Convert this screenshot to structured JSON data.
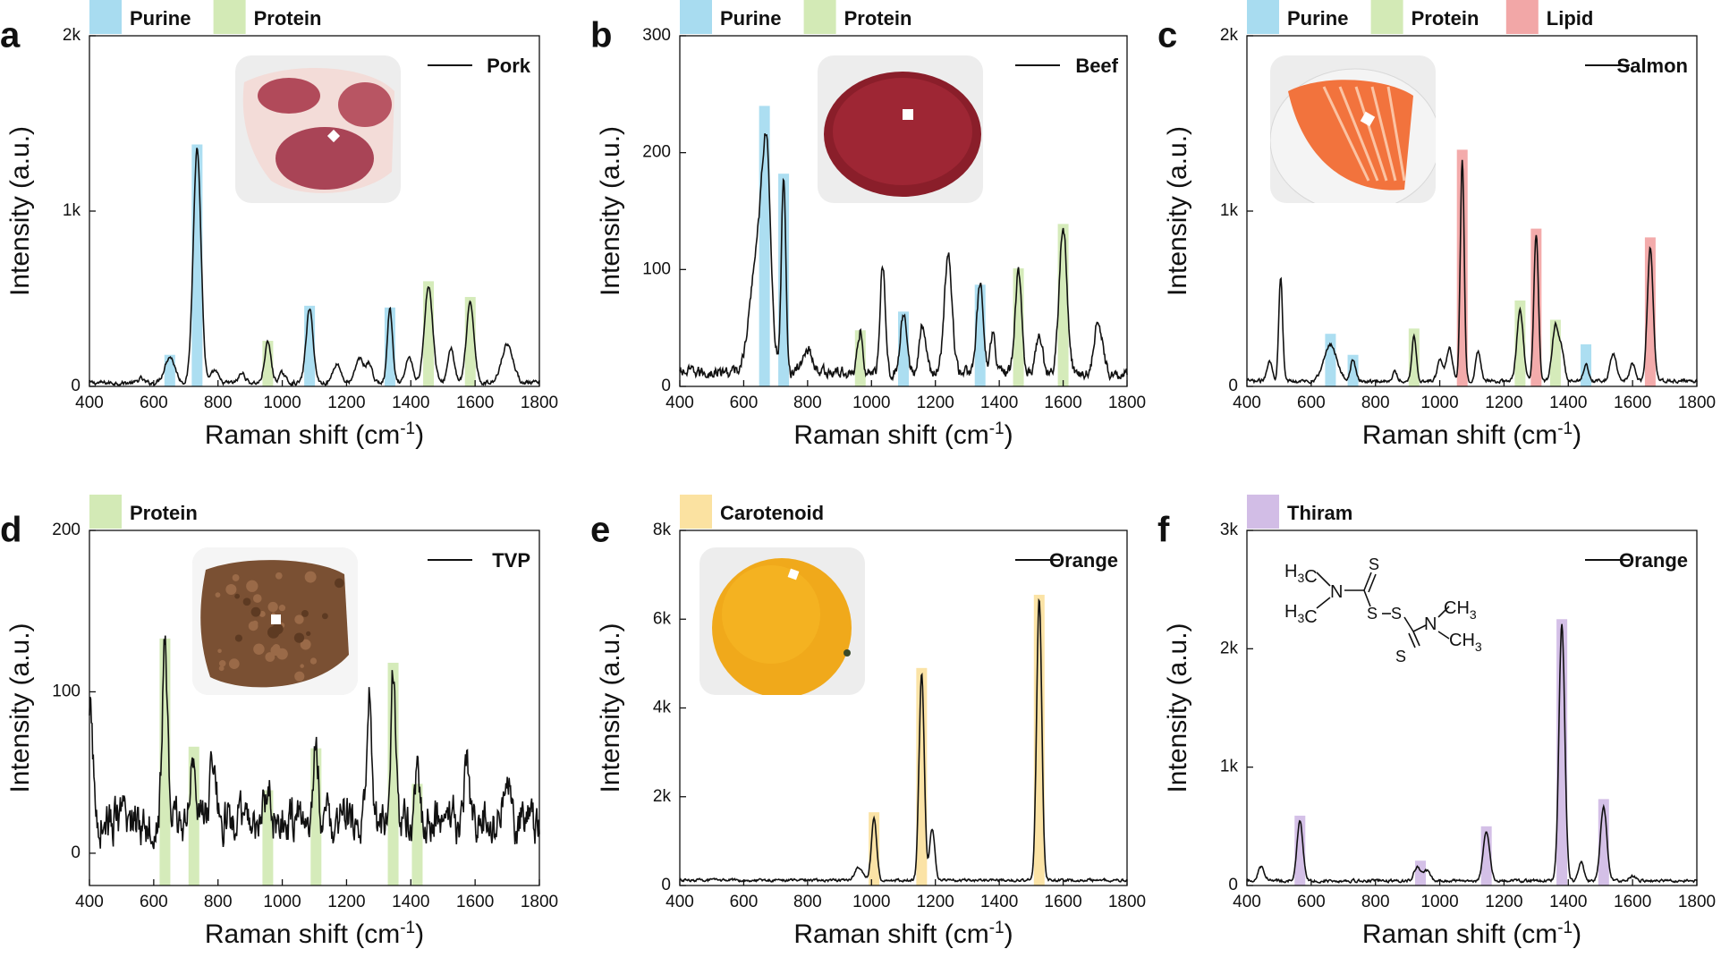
{
  "figure": {
    "panel_labels": [
      "a",
      "b",
      "c",
      "d",
      "e",
      "f"
    ],
    "xlabel": "Raman shift (cm",
    "xlabel_sup": "-1",
    "xlabel_close": ")",
    "ylabel": "Intensity (a.u.)"
  },
  "colors": {
    "Purine": "#a8dcf0",
    "Protein": "#d3eab6",
    "Lipid": "#f2a7a7",
    "Carotenoid": "#fbe2a1",
    "Thiram": "#d2bde6",
    "line": "#111111"
  },
  "chart_data": [
    {
      "panel": "a",
      "type": "line",
      "series_name": "Pork",
      "legend_bands": [
        "Purine",
        "Protein"
      ],
      "xlim": [
        400,
        1800
      ],
      "ylim": [
        0,
        2000
      ],
      "xticks": [
        400,
        600,
        800,
        1000,
        1200,
        1400,
        1600,
        1800
      ],
      "yticks": [
        0,
        1000,
        2000
      ],
      "yticklabels": [
        "0",
        "1k",
        "2k"
      ],
      "baseline": 20,
      "noise": 12,
      "peaks": [
        [
          560,
          25,
          8
        ],
        [
          650,
          150,
          16
        ],
        [
          735,
          1340,
          12
        ],
        [
          790,
          70,
          10
        ],
        [
          875,
          55,
          10
        ],
        [
          955,
          230,
          10
        ],
        [
          1000,
          55,
          10
        ],
        [
          1085,
          420,
          11
        ],
        [
          1170,
          110,
          12
        ],
        [
          1240,
          140,
          12
        ],
        [
          1270,
          110,
          10
        ],
        [
          1335,
          420,
          8
        ],
        [
          1395,
          150,
          10
        ],
        [
          1455,
          550,
          13
        ],
        [
          1525,
          200,
          10
        ],
        [
          1585,
          450,
          12
        ],
        [
          1700,
          220,
          18
        ]
      ],
      "bands": [
        {
          "x": 650,
          "h": 180,
          "k": "Purine"
        },
        {
          "x": 735,
          "h": 1380,
          "k": "Purine"
        },
        {
          "x": 955,
          "h": 260,
          "k": "Protein"
        },
        {
          "x": 1085,
          "h": 460,
          "k": "Purine"
        },
        {
          "x": 1335,
          "h": 450,
          "k": "Purine"
        },
        {
          "x": 1455,
          "h": 600,
          "k": "Protein"
        },
        {
          "x": 1585,
          "h": 510,
          "k": "Protein"
        }
      ]
    },
    {
      "panel": "b",
      "type": "line",
      "series_name": "Beef",
      "legend_bands": [
        "Purine",
        "Protein"
      ],
      "xlim": [
        400,
        1800
      ],
      "ylim": [
        0,
        300
      ],
      "xticks": [
        400,
        600,
        800,
        1000,
        1200,
        1400,
        1600,
        1800
      ],
      "yticks": [
        0,
        100,
        200,
        300
      ],
      "yticklabels": [
        "0",
        "100",
        "200",
        "300"
      ],
      "baseline": 12,
      "noise": 5,
      "peaks": [
        [
          650,
          120,
          25
        ],
        [
          672,
          120,
          12
        ],
        [
          725,
          165,
          7
        ],
        [
          800,
          20,
          15
        ],
        [
          965,
          35,
          8
        ],
        [
          1035,
          95,
          8
        ],
        [
          1100,
          50,
          9
        ],
        [
          1160,
          40,
          10
        ],
        [
          1240,
          100,
          12
        ],
        [
          1340,
          75,
          10
        ],
        [
          1380,
          35,
          8
        ],
        [
          1460,
          85,
          10
        ],
        [
          1525,
          35,
          10
        ],
        [
          1600,
          125,
          12
        ],
        [
          1710,
          45,
          12
        ]
      ],
      "bands": [
        {
          "x": 665,
          "h": 240,
          "k": "Purine"
        },
        {
          "x": 725,
          "h": 182,
          "k": "Purine"
        },
        {
          "x": 965,
          "h": 48,
          "k": "Protein"
        },
        {
          "x": 1100,
          "h": 64,
          "k": "Purine"
        },
        {
          "x": 1340,
          "h": 87,
          "k": "Purine"
        },
        {
          "x": 1460,
          "h": 101,
          "k": "Protein"
        },
        {
          "x": 1600,
          "h": 139,
          "k": "Protein"
        }
      ]
    },
    {
      "panel": "c",
      "type": "line",
      "series_name": "Salmon",
      "legend_bands": [
        "Purine",
        "Protein",
        "Lipid"
      ],
      "xlim": [
        400,
        1800
      ],
      "ylim": [
        0,
        2000
      ],
      "xticks": [
        400,
        600,
        800,
        1000,
        1200,
        1400,
        1600,
        1800
      ],
      "yticks": [
        0,
        1000,
        2000
      ],
      "yticklabels": [
        "0",
        "1k",
        "2k"
      ],
      "baseline": 30,
      "noise": 10,
      "peaks": [
        [
          470,
          120,
          8
        ],
        [
          505,
          600,
          6
        ],
        [
          660,
          210,
          20
        ],
        [
          730,
          120,
          8
        ],
        [
          860,
          50,
          8
        ],
        [
          920,
          260,
          7
        ],
        [
          1000,
          120,
          8
        ],
        [
          1030,
          190,
          10
        ],
        [
          1070,
          1270,
          6
        ],
        [
          1120,
          170,
          8
        ],
        [
          1250,
          400,
          10
        ],
        [
          1300,
          840,
          7
        ],
        [
          1360,
          320,
          10
        ],
        [
          1380,
          150,
          8
        ],
        [
          1455,
          100,
          8
        ],
        [
          1540,
          160,
          10
        ],
        [
          1600,
          100,
          8
        ],
        [
          1655,
          760,
          9
        ]
      ],
      "bands": [
        {
          "x": 660,
          "h": 300,
          "k": "Purine"
        },
        {
          "x": 730,
          "h": 180,
          "k": "Purine"
        },
        {
          "x": 920,
          "h": 330,
          "k": "Protein"
        },
        {
          "x": 1070,
          "h": 1350,
          "k": "Lipid"
        },
        {
          "x": 1250,
          "h": 490,
          "k": "Protein"
        },
        {
          "x": 1300,
          "h": 900,
          "k": "Lipid"
        },
        {
          "x": 1360,
          "h": 380,
          "k": "Protein"
        },
        {
          "x": 1455,
          "h": 240,
          "k": "Purine"
        },
        {
          "x": 1655,
          "h": 850,
          "k": "Lipid"
        }
      ]
    },
    {
      "panel": "d",
      "type": "line",
      "series_name": "TVP",
      "legend_bands": [
        "Protein"
      ],
      "xlim": [
        400,
        1800
      ],
      "ylim": [
        -20,
        200
      ],
      "xticks": [
        400,
        600,
        800,
        1000,
        1200,
        1400,
        1600,
        1800
      ],
      "yticks": [
        0,
        100,
        200
      ],
      "yticklabels": [
        "0",
        "100",
        "200"
      ],
      "baseline": 20,
      "noise": 14,
      "peaks": [
        [
          403,
          65,
          8
        ],
        [
          635,
          110,
          8
        ],
        [
          725,
          45,
          8
        ],
        [
          785,
          35,
          10
        ],
        [
          955,
          20,
          8
        ],
        [
          1105,
          45,
          8
        ],
        [
          1270,
          75,
          7
        ],
        [
          1345,
          95,
          7
        ],
        [
          1420,
          25,
          8
        ],
        [
          1575,
          45,
          6
        ],
        [
          1700,
          20,
          10
        ]
      ],
      "bands": [
        {
          "x": 635,
          "h": 133,
          "k": "Protein"
        },
        {
          "x": 725,
          "h": 66,
          "k": "Protein"
        },
        {
          "x": 955,
          "h": 39,
          "k": "Protein"
        },
        {
          "x": 1105,
          "h": 65,
          "k": "Protein"
        },
        {
          "x": 1345,
          "h": 118,
          "k": "Protein"
        },
        {
          "x": 1420,
          "h": 43,
          "k": "Protein"
        }
      ]
    },
    {
      "panel": "e",
      "type": "line",
      "series_name": "Orange",
      "legend_bands": [
        "Carotenoid"
      ],
      "xlim": [
        400,
        1800
      ],
      "ylim": [
        0,
        8000
      ],
      "xticks": [
        400,
        600,
        800,
        1000,
        1200,
        1400,
        1600,
        1800
      ],
      "yticks": [
        0,
        2000,
        4000,
        6000,
        8000
      ],
      "yticklabels": [
        "0",
        "2k",
        "4k",
        "6k",
        "8k"
      ],
      "baseline": 120,
      "noise": 30,
      "peaks": [
        [
          960,
          280,
          12
        ],
        [
          1008,
          1400,
          8
        ],
        [
          1157,
          4650,
          8
        ],
        [
          1190,
          1150,
          8
        ],
        [
          1525,
          6350,
          8
        ]
      ],
      "bands": [
        {
          "x": 1008,
          "h": 1650,
          "k": "Carotenoid"
        },
        {
          "x": 1157,
          "h": 4900,
          "k": "Carotenoid"
        },
        {
          "x": 1525,
          "h": 6550,
          "k": "Carotenoid"
        }
      ]
    },
    {
      "panel": "f",
      "type": "line",
      "series_name": "Orange",
      "legend_bands": [
        "Thiram"
      ],
      "xlim": [
        400,
        1800
      ],
      "ylim": [
        0,
        3000
      ],
      "xticks": [
        400,
        600,
        800,
        1000,
        1200,
        1400,
        1600,
        1800
      ],
      "yticks": [
        0,
        1000,
        2000,
        3000
      ],
      "yticklabels": [
        "0",
        "1k",
        "2k",
        "3k"
      ],
      "baseline": 40,
      "noise": 12,
      "peaks": [
        [
          445,
          120,
          10
        ],
        [
          565,
          500,
          9
        ],
        [
          930,
          120,
          10
        ],
        [
          960,
          80,
          10
        ],
        [
          1145,
          420,
          10
        ],
        [
          1380,
          2160,
          9
        ],
        [
          1440,
          150,
          8
        ],
        [
          1510,
          620,
          10
        ],
        [
          1600,
          40,
          10
        ]
      ],
      "bands": [
        {
          "x": 565,
          "h": 590,
          "k": "Thiram"
        },
        {
          "x": 940,
          "h": 210,
          "k": "Thiram"
        },
        {
          "x": 1145,
          "h": 500,
          "k": "Thiram"
        },
        {
          "x": 1380,
          "h": 2250,
          "k": "Thiram"
        },
        {
          "x": 1510,
          "h": 730,
          "k": "Thiram"
        }
      ]
    }
  ],
  "photos": [
    {
      "panel": "a",
      "name": "pork-photo",
      "kind": "pork"
    },
    {
      "panel": "b",
      "name": "beef-photo",
      "kind": "beef"
    },
    {
      "panel": "c",
      "name": "salmon-photo",
      "kind": "salmon"
    },
    {
      "panel": "d",
      "name": "tvp-photo",
      "kind": "tvp"
    },
    {
      "panel": "e",
      "name": "orange-photo",
      "kind": "orange"
    }
  ],
  "structure": {
    "label": "Thiram",
    "atoms": {
      "h3c_top": "H",
      "h3c_bot": "H",
      "sub3": "3",
      "c": "C",
      "n": "N",
      "s_top": "S",
      "s1": "S",
      "s2": "S",
      "s_bot": "S",
      "ch3": "CH"
    }
  }
}
